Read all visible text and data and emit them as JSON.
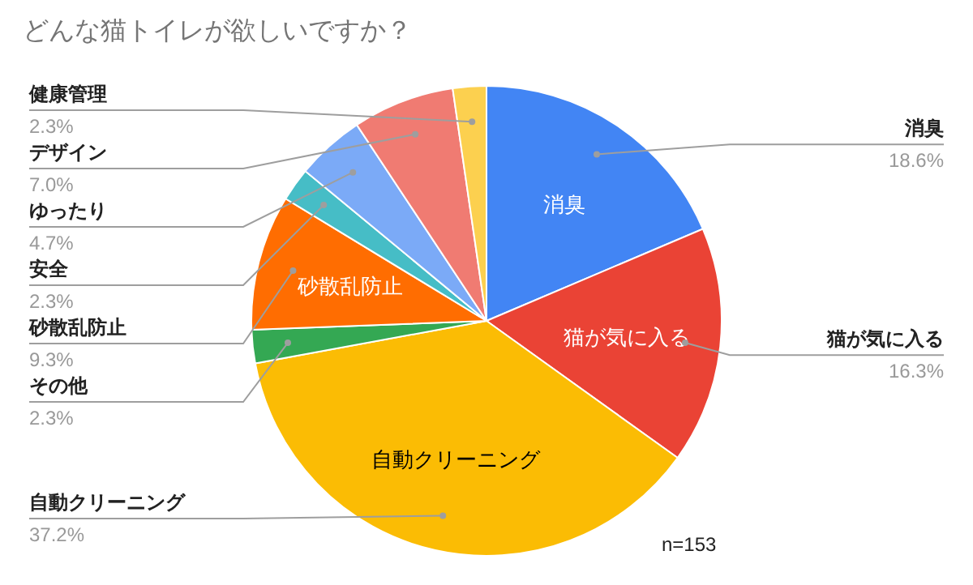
{
  "chart_data": {
    "type": "pie",
    "title": "どんな猫トイレが欲しいですか？",
    "categories": [
      "消臭",
      "猫が気に入る",
      "自動クリーニング",
      "その他",
      "砂散乱防止",
      "安全",
      "ゆったり",
      "デザイン",
      "健康管理"
    ],
    "values": [
      18.6,
      16.3,
      37.2,
      2.3,
      9.3,
      2.3,
      4.7,
      7.0,
      2.3
    ],
    "colors": [
      "#4285f4",
      "#ea4335",
      "#fbbc04",
      "#34a853",
      "#ff6d01",
      "#46bdc6",
      "#7baaf7",
      "#f07b72",
      "#fcd04f"
    ],
    "value_labels": [
      "18.6%",
      "16.3%",
      "37.2%",
      "2.3%",
      "9.3%",
      "2.3%",
      "4.7%",
      "7.0%",
      "2.3%"
    ],
    "annotations": [
      "n=153"
    ]
  }
}
